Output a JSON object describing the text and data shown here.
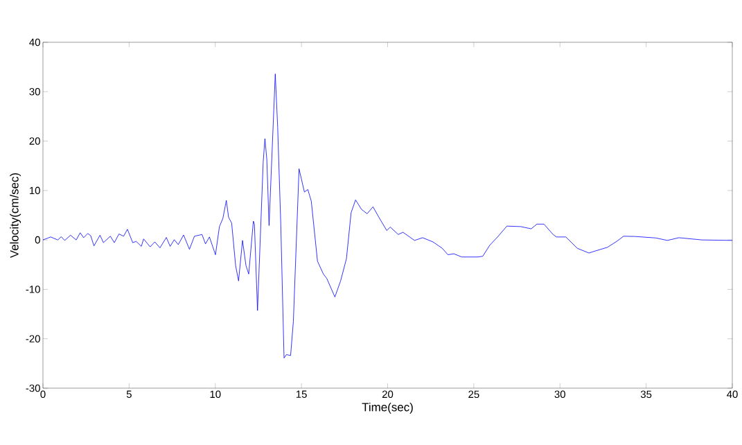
{
  "chart_data": {
    "type": "line",
    "xlabel": "Time(sec)",
    "ylabel": "Velocity(cm/sec)",
    "xlim": [
      0,
      40
    ],
    "ylim": [
      -30,
      40
    ],
    "xticks": [
      0,
      5,
      10,
      15,
      20,
      25,
      30,
      35,
      40
    ],
    "yticks": [
      -30,
      -20,
      -10,
      0,
      10,
      20,
      30,
      40
    ],
    "series": [
      {
        "color": "#0000ff",
        "x": [
          0,
          0.45,
          0.86,
          1.06,
          1.26,
          1.6,
          1.93,
          2.16,
          2.36,
          2.6,
          2.77,
          2.96,
          3.31,
          3.51,
          3.91,
          4.14,
          4.41,
          4.68,
          4.9,
          5.21,
          5.41,
          5.71,
          5.84,
          6.22,
          6.49,
          6.79,
          7.16,
          7.38,
          7.62,
          7.85,
          8.16,
          8.5,
          8.79,
          9.23,
          9.43,
          9.66,
          10.01,
          10.24,
          10.44,
          10.64,
          10.77,
          10.95,
          11.18,
          11.35,
          11.58,
          11.78,
          11.94,
          12.21,
          12.27,
          12.45,
          12.78,
          12.88,
          12.99,
          13.12,
          13.48,
          13.62,
          13.8,
          13.99,
          14.13,
          14.37,
          14.53,
          14.86,
          15.17,
          15.37,
          15.57,
          15.93,
          16.27,
          16.47,
          16.94,
          17.27,
          17.61,
          17.88,
          18.14,
          18.48,
          18.81,
          19.15,
          19.49,
          19.95,
          20.15,
          20.62,
          20.89,
          21.56,
          22.03,
          22.63,
          23.17,
          23.5,
          23.84,
          24.3,
          25.25,
          25.52,
          25.92,
          26.38,
          26.92,
          27.72,
          28.33,
          28.66,
          29.07,
          29.6,
          29.8,
          30.34,
          31.01,
          31.68,
          32.08,
          32.75,
          33.29,
          33.69,
          34.36,
          35.56,
          36.23,
          36.9,
          38.24,
          40
        ],
        "values": [
          0,
          0.6,
          0,
          0.65,
          -0.1,
          0.95,
          0,
          1.45,
          0.45,
          1.3,
          0.85,
          -1.2,
          0.95,
          -0.55,
          0.75,
          -0.55,
          1.2,
          0.75,
          2.15,
          -0.55,
          -0.3,
          -1.3,
          0.2,
          -1.4,
          -0.4,
          -1.6,
          0.5,
          -1.3,
          0.05,
          -0.95,
          1.0,
          -1.9,
          0.75,
          1.1,
          -0.8,
          0.6,
          -3.0,
          2.7,
          4.35,
          8.0,
          4.6,
          3.4,
          -5.2,
          -8.3,
          -0.1,
          -5.2,
          -6.9,
          3.8,
          3.2,
          -14.3,
          15.8,
          20.5,
          16.3,
          2.9,
          33.6,
          22.8,
          3.2,
          -23.9,
          -23.2,
          -23.4,
          -16.5,
          14.4,
          9.7,
          10.2,
          7.85,
          -4.3,
          -6.9,
          -7.8,
          -11.55,
          -8.3,
          -3.8,
          5.5,
          8.1,
          6.2,
          5.3,
          6.7,
          4.6,
          1.9,
          2.6,
          1.1,
          1.55,
          -0.1,
          0.45,
          -0.4,
          -1.7,
          -3.0,
          -2.8,
          -3.45,
          -3.45,
          -3.3,
          -1.1,
          0.6,
          2.8,
          2.7,
          2.25,
          3.2,
          3.2,
          1.1,
          0.6,
          0.6,
          -1.7,
          -2.65,
          -2.2,
          -1.5,
          -0.3,
          0.75,
          0.7,
          0.4,
          -0.1,
          0.45,
          0,
          -0.1
        ]
      }
    ]
  }
}
